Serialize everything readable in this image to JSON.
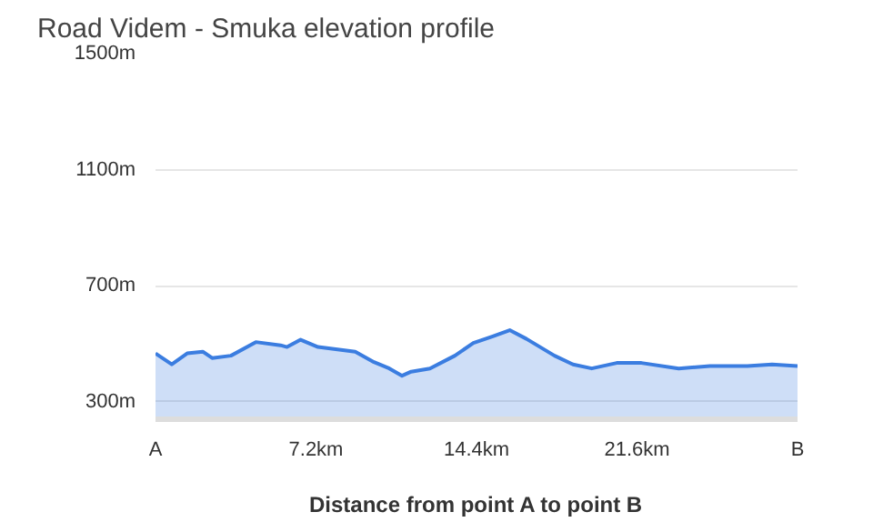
{
  "chart_data": {
    "type": "area",
    "title": "Road Videm - Smuka elevation profile",
    "xlabel": "Distance from point A to point B",
    "x": [
      0,
      0.73,
      1.42,
      2.12,
      2.54,
      3.38,
      4.5,
      5.61,
      5.9,
      6.51,
      7.29,
      8.96,
      9.8,
      10.49,
      11.06,
      11.47,
      12.31,
      13.15,
      13.43,
      14.26,
      15.1,
      15.89,
      16.64,
      17.9,
      18.73,
      19.57,
      20.69,
      21.8,
      23.47,
      24.87,
      26.55,
      27.66,
      28.8
    ],
    "series": [
      {
        "color": "#3b7de0",
        "values": [
          467,
          429,
          467,
          473,
          451,
          459,
          506,
          495,
          489,
          514,
          489,
          473,
          437,
          415,
          390,
          404,
          415,
          448,
          459,
          503,
          525,
          547,
          517,
          459,
          429,
          415,
          434,
          434,
          415,
          423,
          423,
          429,
          423
        ]
      }
    ],
    "xlim": [
      0,
      28.8
    ],
    "xticks": [
      {
        "value": 0,
        "label": "A"
      },
      {
        "value": 7.2,
        "label": "7.2km"
      },
      {
        "value": 14.4,
        "label": "14.4km"
      },
      {
        "value": 21.6,
        "label": "21.6km"
      },
      {
        "value": 28.8,
        "label": "B"
      }
    ],
    "ylim": [
      240,
      1500
    ],
    "yticks": [
      {
        "value": 300,
        "label": "300m"
      },
      {
        "value": 700,
        "label": "700m"
      },
      {
        "value": 1100,
        "label": "1100m"
      },
      {
        "value": 1500,
        "label": "1500m"
      }
    ],
    "grid": "y"
  }
}
